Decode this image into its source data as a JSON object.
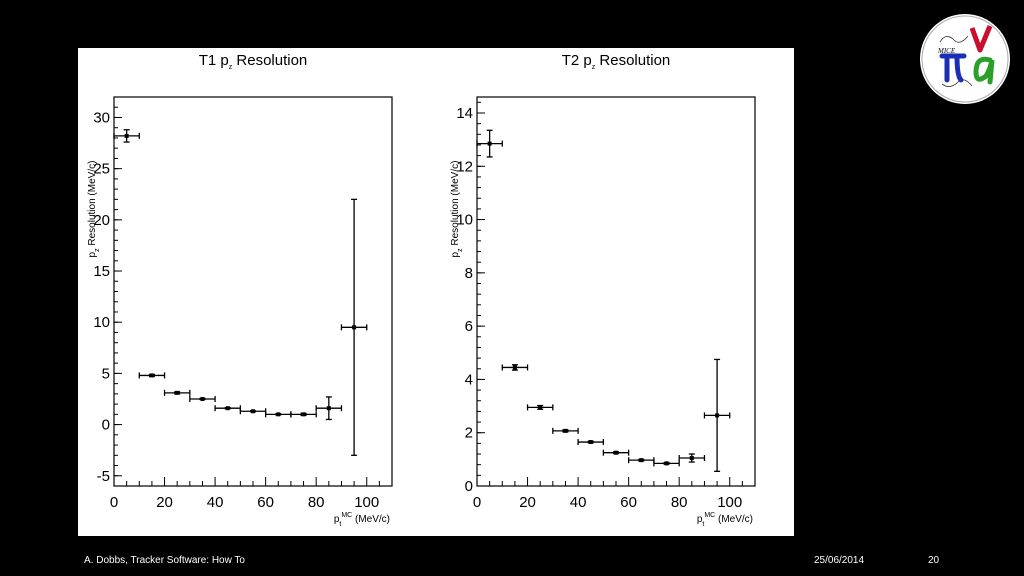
{
  "footer": {
    "author": "A. Dobbs, Tracker Software: How To",
    "date": "25/06/2014",
    "page": "20"
  },
  "logo": {
    "text": "MICE"
  },
  "chart_data": [
    {
      "type": "scatter",
      "title": {
        "main": "T1 p",
        "sub": "z",
        "rest": " Resolution"
      },
      "ylabel": {
        "main": "p",
        "sub": "z",
        "rest": " Resolution (MeV/c)"
      },
      "xlabel": {
        "main": "p",
        "sub": "t",
        "sup": "MC",
        "rest": " (MeV/c)"
      },
      "xlim": [
        0,
        110
      ],
      "ylim": [
        -6,
        32
      ],
      "xticks": [
        0,
        20,
        40,
        60,
        80,
        100
      ],
      "yticks": [
        -5,
        0,
        5,
        10,
        15,
        20,
        25,
        30
      ],
      "points": [
        {
          "x": 5,
          "xerr": 5,
          "y": 28.2,
          "yerr": 0.6
        },
        {
          "x": 15,
          "xerr": 5,
          "y": 4.8,
          "yerr": 0.1
        },
        {
          "x": 25,
          "xerr": 5,
          "y": 3.1,
          "yerr": 0.1
        },
        {
          "x": 35,
          "xerr": 5,
          "y": 2.5,
          "yerr": 0.05
        },
        {
          "x": 45,
          "xerr": 5,
          "y": 1.6,
          "yerr": 0.05
        },
        {
          "x": 55,
          "xerr": 5,
          "y": 1.3,
          "yerr": 0.05
        },
        {
          "x": 65,
          "xerr": 5,
          "y": 1.0,
          "yerr": 0.05
        },
        {
          "x": 75,
          "xerr": 5,
          "y": 1.0,
          "yerr": 0.1
        },
        {
          "x": 85,
          "xerr": 5,
          "y": 1.6,
          "yerr": 1.1
        },
        {
          "x": 95,
          "xerr": 5,
          "y": 9.5,
          "yerr": 12.5
        }
      ]
    },
    {
      "type": "scatter",
      "title": {
        "main": "T2 p",
        "sub": "z",
        "rest": " Resolution"
      },
      "ylabel": {
        "main": "p",
        "sub": "z",
        "rest": " Resolution (MeV/c)"
      },
      "xlabel": {
        "main": "p",
        "sub": "t",
        "sup": "MC",
        "rest": " (MeV/c)"
      },
      "xlim": [
        0,
        110
      ],
      "ylim": [
        0,
        14.6
      ],
      "xticks": [
        0,
        20,
        40,
        60,
        80,
        100
      ],
      "yticks": [
        0,
        2,
        4,
        6,
        8,
        10,
        12,
        14
      ],
      "points": [
        {
          "x": 5,
          "xerr": 5,
          "y": 12.85,
          "yerr": 0.5
        },
        {
          "x": 15,
          "xerr": 5,
          "y": 4.45,
          "yerr": 0.1
        },
        {
          "x": 25,
          "xerr": 5,
          "y": 2.95,
          "yerr": 0.07
        },
        {
          "x": 35,
          "xerr": 5,
          "y": 2.07,
          "yerr": 0.04
        },
        {
          "x": 45,
          "xerr": 5,
          "y": 1.65,
          "yerr": 0.03
        },
        {
          "x": 55,
          "xerr": 5,
          "y": 1.25,
          "yerr": 0.03
        },
        {
          "x": 65,
          "xerr": 5,
          "y": 0.97,
          "yerr": 0.03
        },
        {
          "x": 75,
          "xerr": 5,
          "y": 0.85,
          "yerr": 0.03
        },
        {
          "x": 85,
          "xerr": 5,
          "y": 1.05,
          "yerr": 0.15
        },
        {
          "x": 95,
          "xerr": 5,
          "y": 2.65,
          "yerr": 2.1
        }
      ]
    }
  ]
}
